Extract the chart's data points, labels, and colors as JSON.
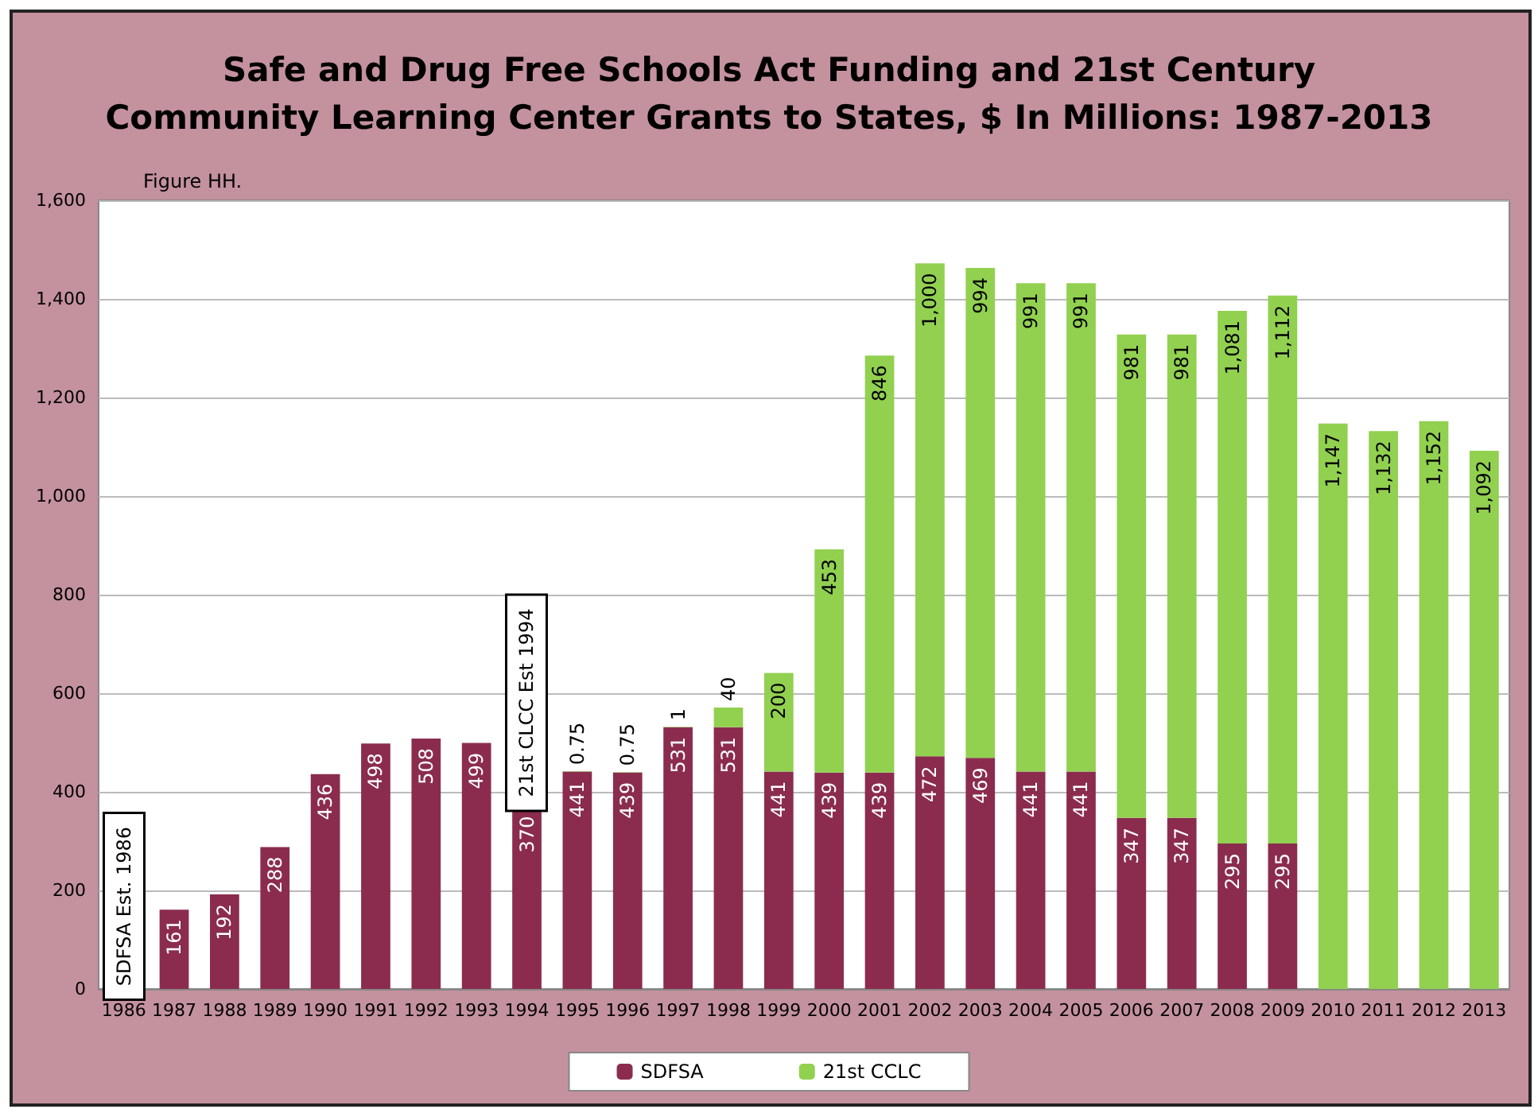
{
  "chart_data": {
    "type": "bar",
    "stacked": true,
    "title": "Safe and Drug Free Schools Act Funding and 21st Century\nCommunity Learning Center Grants to States, $ In Millions: 1987-2013",
    "categories": [
      "1986",
      "1987",
      "1988",
      "1989",
      "1990",
      "1991",
      "1992",
      "1993",
      "1994",
      "1995",
      "1996",
      "1997",
      "1998",
      "1999",
      "2000",
      "2001",
      "2002",
      "2003",
      "2004",
      "2005",
      "2006",
      "2007",
      "2008",
      "2009",
      "2010",
      "2011",
      "2012",
      "2013"
    ],
    "series": [
      {
        "name": "SDFSA",
        "color": "#8b2c4f",
        "values": [
          null,
          161,
          192,
          288,
          436,
          498,
          508,
          499,
          370,
          441,
          439,
          531,
          531,
          441,
          439,
          439,
          472,
          469,
          441,
          441,
          347,
          347,
          295,
          295,
          null,
          null,
          null,
          null
        ],
        "value_labels": [
          null,
          "161",
          "192",
          "288",
          "436",
          "498",
          "508",
          "499",
          "370",
          "441",
          "439",
          "531",
          "531",
          "441",
          "439",
          "439",
          "472",
          "469",
          "441",
          "441",
          "347",
          "347",
          "295",
          "295",
          null,
          null,
          null,
          null
        ]
      },
      {
        "name": "21st CCLC",
        "color": "#92d050",
        "values": [
          null,
          null,
          null,
          null,
          null,
          null,
          null,
          null,
          null,
          0.75,
          0.75,
          1,
          40,
          200,
          453,
          846,
          1000,
          994,
          991,
          991,
          981,
          981,
          1081,
          1112,
          1147,
          1132,
          1152,
          1092
        ],
        "value_labels": [
          null,
          null,
          null,
          null,
          null,
          null,
          null,
          null,
          null,
          "0.75",
          "0.75",
          "1",
          "40",
          "200",
          "453",
          "846",
          "1,000",
          "994",
          "991",
          "991",
          "981",
          "981",
          "1,081",
          "1,112",
          "1,147",
          "1,132",
          "1,152",
          "1,092"
        ]
      }
    ],
    "ylim": [
      0,
      1600
    ],
    "yticks": [
      0,
      200,
      400,
      600,
      800,
      {
        "value": 1000,
        "label": "1,000"
      },
      {
        "value": 1200,
        "label": "1,200"
      },
      {
        "value": 1400,
        "label": "1,400"
      },
      {
        "value": 1600,
        "label": "1,600"
      }
    ],
    "grid": "y",
    "legend": "bottom",
    "annotations": [
      "Figure HH.",
      "SDFSA Est. 1986",
      "21st CLCC Est 1994"
    ]
  }
}
